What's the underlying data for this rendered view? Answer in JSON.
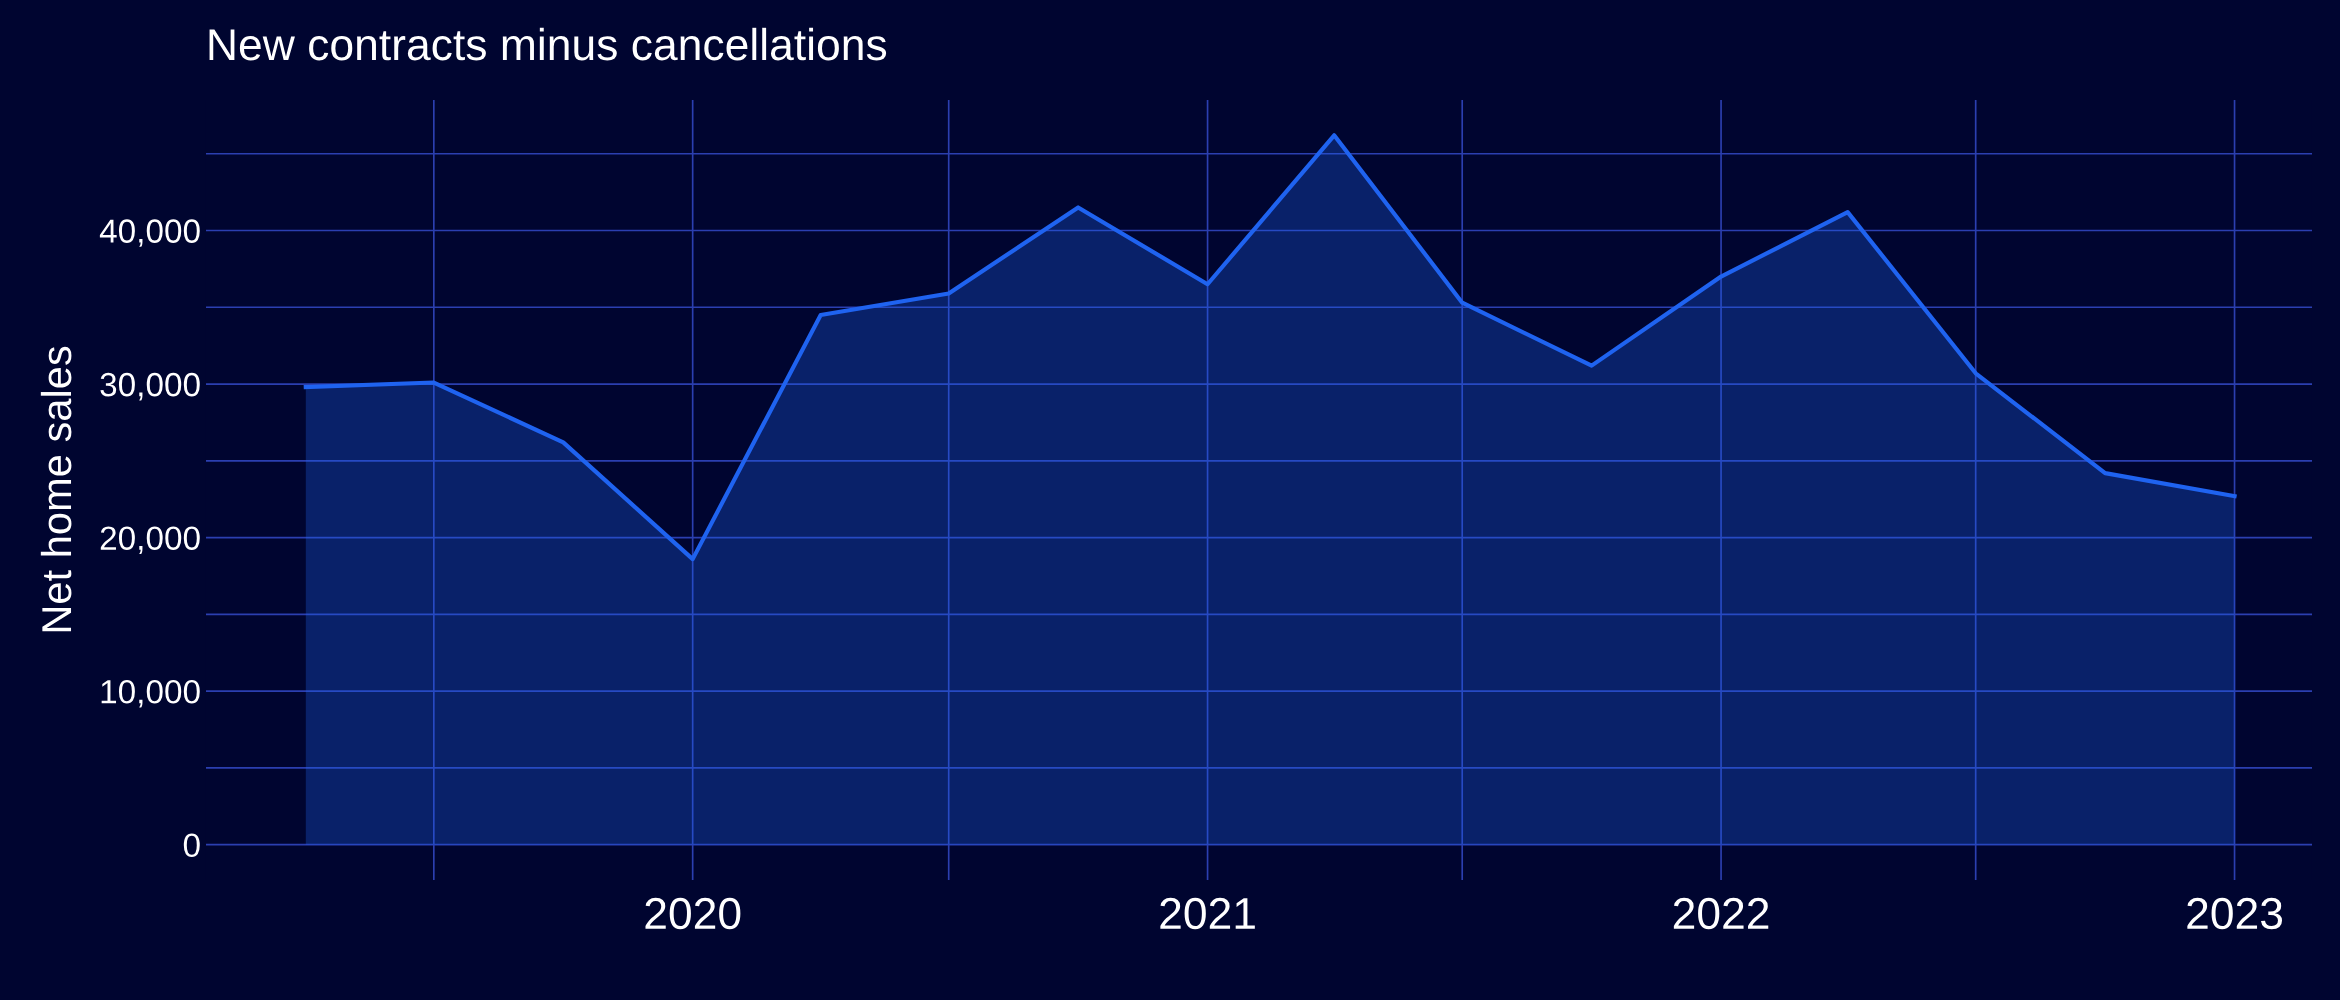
{
  "chart_data": {
    "type": "area",
    "title": "New contracts minus cancellations",
    "ylabel": "Net home sales",
    "x": [
      "2019-04-01",
      "2019-07-01",
      "2019-10-01",
      "2020-01-01",
      "2020-04-01",
      "2020-07-01",
      "2020-10-01",
      "2021-01-01",
      "2021-04-01",
      "2021-07-01",
      "2021-10-01",
      "2022-01-01",
      "2022-04-01",
      "2022-07-01",
      "2022-10-01",
      "2023-01-01"
    ],
    "series": [
      {
        "color": "#1f63f0",
        "values": [
          29800,
          30100,
          26200,
          18600,
          34500,
          35900,
          41500,
          36500,
          46200,
          35300,
          31200,
          37000,
          41200,
          30700,
          24200,
          22700
        ]
      }
    ],
    "xlim": [
      "2019-01-20",
      "2023-02-25"
    ],
    "ylim": [
      -2300,
      48500
    ],
    "xticks": [
      {
        "value": "2019-07-01",
        "label": null
      },
      {
        "value": "2020-01-01",
        "label": "2020"
      },
      {
        "value": "2020-07-01",
        "label": null
      },
      {
        "value": "2021-01-01",
        "label": "2021"
      },
      {
        "value": "2021-07-01",
        "label": null
      },
      {
        "value": "2022-01-01",
        "label": "2022"
      },
      {
        "value": "2022-07-01",
        "label": null
      },
      {
        "value": "2023-01-01",
        "label": "2023"
      }
    ],
    "yticks": [
      {
        "value": 0,
        "label": "0"
      },
      {
        "value": 5000,
        "label": null
      },
      {
        "value": 10000,
        "label": "10,000"
      },
      {
        "value": 15000,
        "label": null
      },
      {
        "value": 20000,
        "label": "20,000"
      },
      {
        "value": 25000,
        "label": null
      },
      {
        "value": 30000,
        "label": "30,000"
      },
      {
        "value": 35000,
        "label": null
      },
      {
        "value": 40000,
        "label": "40,000"
      },
      {
        "value": 45000,
        "label": null
      }
    ],
    "grid": true
  }
}
